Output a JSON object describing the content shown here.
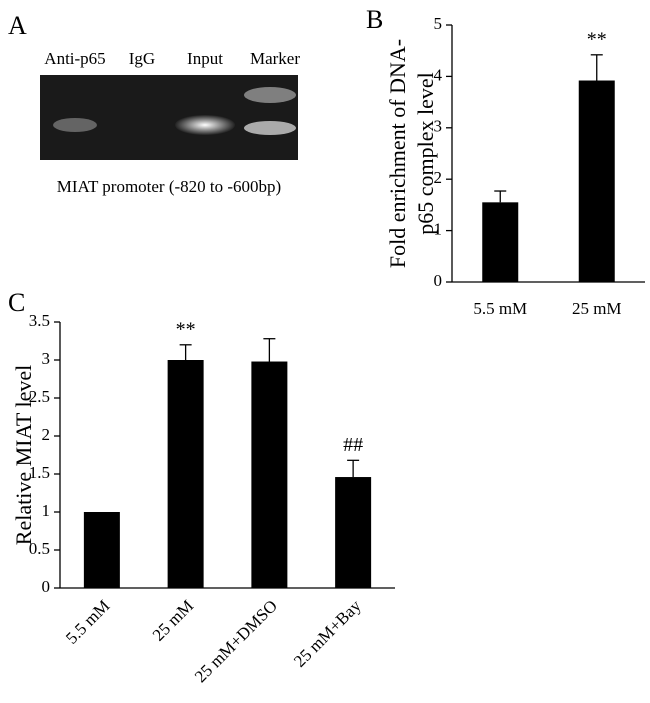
{
  "chart_data": [
    {
      "type": "gel",
      "panel_label": "A",
      "lanes": [
        "Anti-p65",
        "IgG",
        "Input",
        "Marker"
      ],
      "caption": "MIAT promoter (-820 to -600bp)"
    },
    {
      "type": "bar",
      "panel_label": "B",
      "ylabel": [
        "Fold enrichment of DNA-",
        "p65 complex level"
      ],
      "categories": [
        "5.5 mM",
        "25 mM"
      ],
      "values": [
        1.55,
        3.92
      ],
      "errors": [
        0.22,
        0.5
      ],
      "annotations": [
        null,
        "**"
      ],
      "color": "#000000",
      "ylim": [
        0,
        5
      ],
      "yticks": [
        0,
        1,
        2,
        3,
        4,
        5
      ]
    },
    {
      "type": "bar",
      "panel_label": "C",
      "ylabel": [
        "Relative MIAT level"
      ],
      "categories": [
        "5.5 mM",
        "25 mM",
        "25 mM+DMSO",
        "25 mM+Bay"
      ],
      "values": [
        1.0,
        3.0,
        2.98,
        1.46
      ],
      "errors": [
        0,
        0.2,
        0.3,
        0.22
      ],
      "annotations": [
        null,
        "**",
        null,
        "##"
      ],
      "color": "#000000",
      "ylim": [
        0,
        3.5
      ],
      "yticks": [
        0,
        0.5,
        1,
        1.5,
        2,
        2.5,
        3,
        3.5
      ]
    }
  ]
}
